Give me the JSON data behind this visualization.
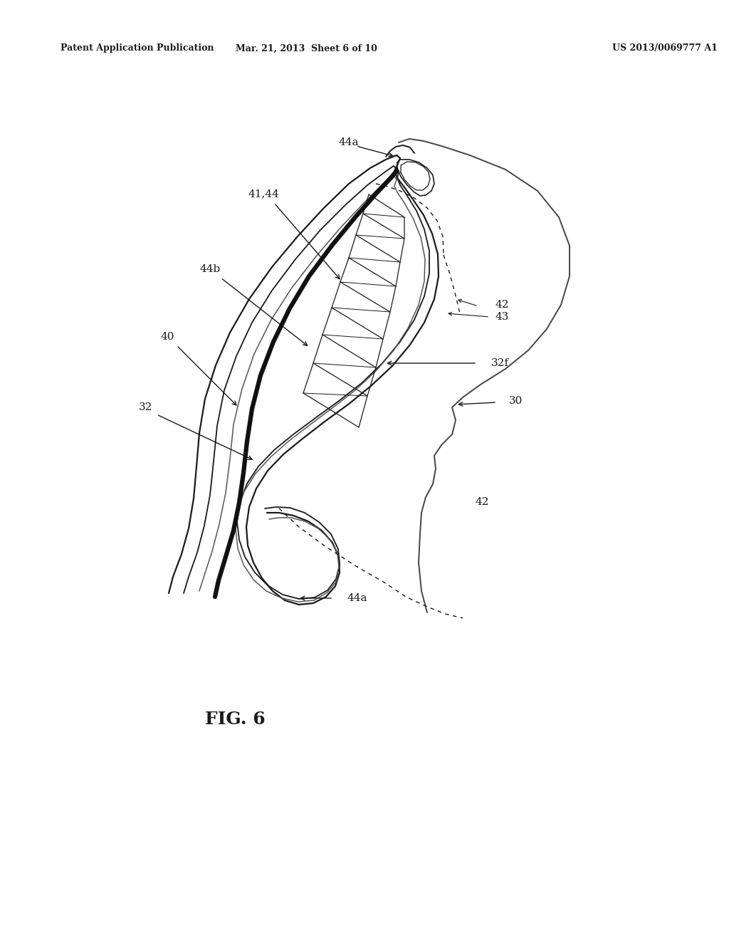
{
  "header_left": "Patent Application Publication",
  "header_center": "Mar. 21, 2013  Sheet 6 of 10",
  "header_right": "US 2013/0069777 A1",
  "figure_label": "FIG. 6",
  "bg": "#ffffff",
  "lc": "#1a1a1a",
  "labels": {
    "44a_top": "44a",
    "41_44": "41,44",
    "44b": "44b",
    "40": "40",
    "32": "32",
    "42_top": "42",
    "43": "43",
    "32f": "32f",
    "30": "30",
    "42_bottom": "42",
    "44a_bottom": "44a"
  }
}
